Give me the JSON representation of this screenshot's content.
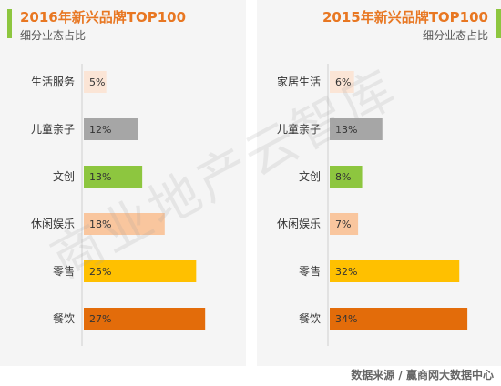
{
  "left": {
    "title": "2016年新兴品牌TOP100",
    "subtitle": "细分业态占比"
  },
  "right": {
    "title": "2015年新兴品牌TOP100",
    "subtitle": "细分业态占比"
  },
  "watermark": "商业地产云智库",
  "source": "数据来源 / 赢商网大数据中心",
  "colors": {
    "title": "#e87722",
    "accent": "#8dc63f",
    "bar_lightpink": "#fbe5d6",
    "bar_gray": "#a6a6a6",
    "bar_green": "#8dc63f",
    "bar_peach": "#f9c69e",
    "bar_gold": "#ffc000",
    "bar_orange": "#e36c0a"
  },
  "chart_data": [
    {
      "type": "bar",
      "orientation": "horizontal",
      "title": "2016年新兴品牌TOP100",
      "subtitle": "细分业态占比",
      "categories": [
        "生活服务",
        "儿童亲子",
        "文创",
        "休闲娱乐",
        "零售",
        "餐饮"
      ],
      "values": [
        5,
        12,
        13,
        18,
        25,
        27
      ],
      "labels": [
        "5%",
        "12%",
        "13%",
        "18%",
        "25%",
        "27%"
      ],
      "colors": [
        "#fbe5d6",
        "#a6a6a6",
        "#8dc63f",
        "#f9c69e",
        "#ffc000",
        "#e36c0a"
      ],
      "unit": "%",
      "xlim": [
        0,
        30
      ]
    },
    {
      "type": "bar",
      "orientation": "horizontal",
      "title": "2015年新兴品牌TOP100",
      "subtitle": "细分业态占比",
      "categories": [
        "家居生活",
        "儿童亲子",
        "文创",
        "休闲娱乐",
        "零售",
        "餐饮"
      ],
      "values": [
        6,
        13,
        8,
        7,
        32,
        34
      ],
      "labels": [
        "6%",
        "13%",
        "8%",
        "7%",
        "32%",
        "34%"
      ],
      "colors": [
        "#fbe5d6",
        "#a6a6a6",
        "#8dc63f",
        "#f9c69e",
        "#ffc000",
        "#e36c0a"
      ],
      "unit": "%",
      "xlim": [
        0,
        36
      ]
    }
  ]
}
